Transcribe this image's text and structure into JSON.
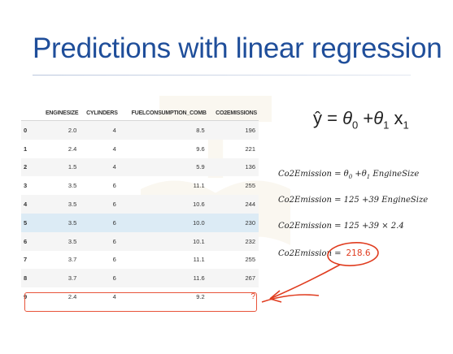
{
  "slide": {
    "title": "Predictions with linear regression"
  },
  "table": {
    "columns": [
      "",
      "ENGINESIZE",
      "CYLINDERS",
      "FUELCONSUMPTION_COMB",
      "CO2EMISSIONS"
    ],
    "rows": [
      [
        "0",
        "2.0",
        "4",
        "8.5",
        "196"
      ],
      [
        "1",
        "2.4",
        "4",
        "9.6",
        "221"
      ],
      [
        "2",
        "1.5",
        "4",
        "5.9",
        "136"
      ],
      [
        "3",
        "3.5",
        "6",
        "11.1",
        "255"
      ],
      [
        "4",
        "3.5",
        "6",
        "10.6",
        "244"
      ],
      [
        "5",
        "3.5",
        "6",
        "10.0",
        "230"
      ],
      [
        "6",
        "3.5",
        "6",
        "10.1",
        "232"
      ],
      [
        "7",
        "3.7",
        "6",
        "11.1",
        "255"
      ],
      [
        "8",
        "3.7",
        "6",
        "11.6",
        "267"
      ],
      [
        "9",
        "2.4",
        "4",
        "9.2",
        "?"
      ]
    ],
    "highlight_row": 5,
    "prediction_row": 9
  },
  "equations": {
    "model": {
      "lhs": "ŷ",
      "eq": " = ",
      "theta0": "θ",
      "theta0_sub": "0",
      "plus": " +",
      "theta1": "θ",
      "theta1_sub": "1",
      "x": " x",
      "x_sub": "1"
    },
    "line1": {
      "lhs": "Co2Emission = θ",
      "sub0": "0",
      "mid": " +θ",
      "sub1": "1",
      "rhs": " EngineSize"
    },
    "line2": "Co2Emission = 125 +39 EngineSize",
    "line3": "Co2Emission = 125 +39  × 2.4",
    "line4_lhs": "Co2Emission =",
    "line4_result": "218.6"
  },
  "colors": {
    "title": "#1f4e9a",
    "annotation": "#e03c1f",
    "highlight_row": "#dcebf5"
  }
}
